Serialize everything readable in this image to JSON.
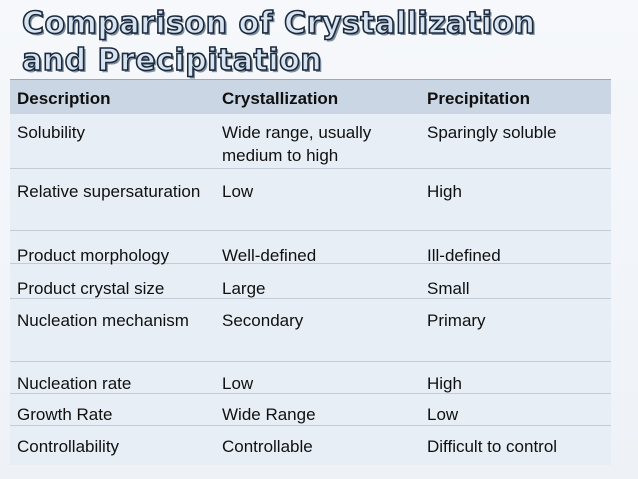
{
  "slide": {
    "title_line1": "Comparison of Crystallization",
    "title_line2": "and Precipitation"
  },
  "table": {
    "headers": [
      "Description",
      "Crystallization",
      "Precipitation"
    ],
    "rows": [
      [
        "Solubility",
        "Wide range, usually medium to high",
        "Sparingly soluble"
      ],
      [
        "Relative supersaturation",
        "Low",
        "High"
      ],
      [
        "Product morphology",
        "Well-defined",
        "Ill-defined"
      ],
      [
        "Product crystal size",
        "Large",
        "Small"
      ],
      [
        "Nucleation mechanism",
        "Secondary",
        "Primary"
      ],
      [
        "Nucleation rate",
        "Low",
        "High"
      ],
      [
        "Growth Rate",
        "Wide Range",
        "Low"
      ],
      [
        "Controllability",
        "Controllable",
        "Difficult to control"
      ]
    ]
  },
  "colors": {
    "title_fill": "#d9e4f1",
    "title_outline": "#1b2a3c",
    "header_bg": "#cad6e3",
    "table_bg": "#e8eef6"
  }
}
